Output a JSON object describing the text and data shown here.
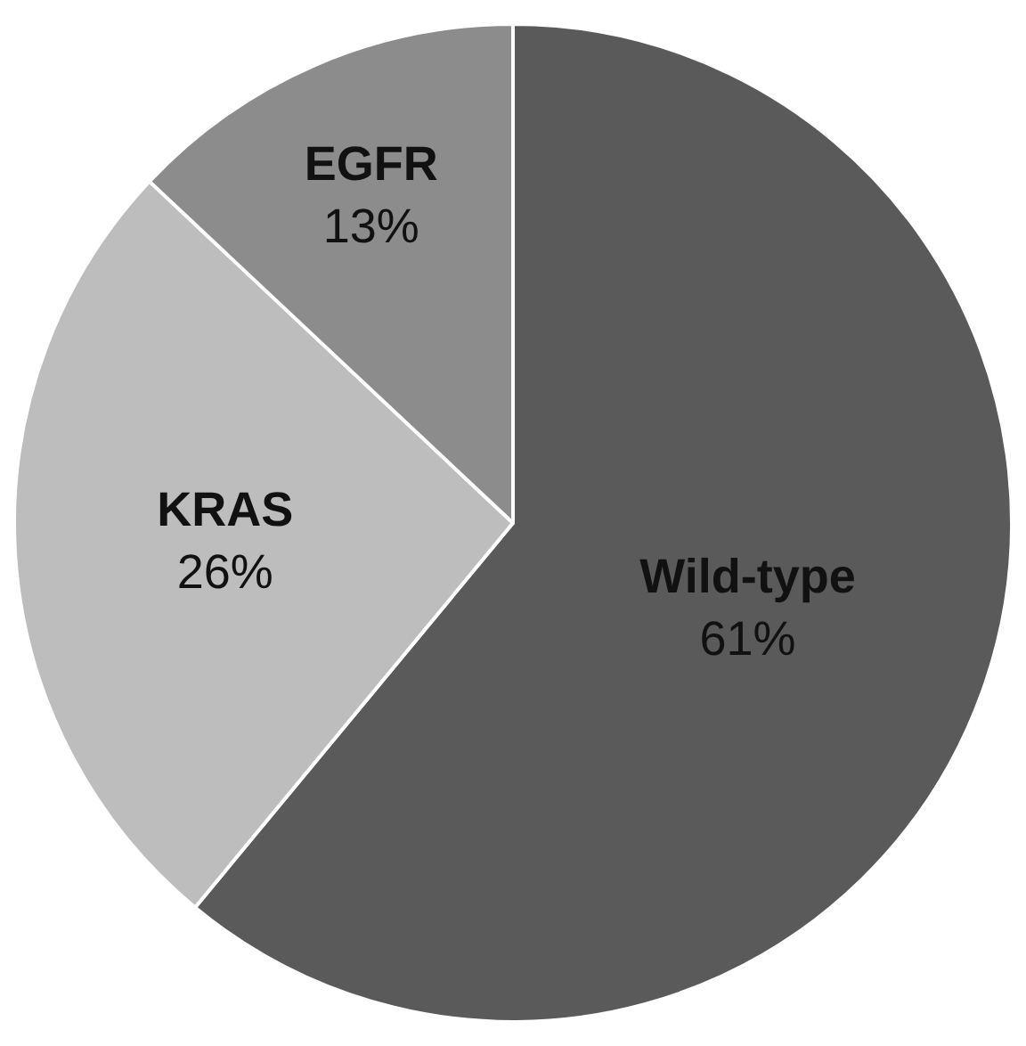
{
  "chart_data": {
    "type": "pie",
    "categories": [
      "Wild-type",
      "KRAS",
      "EGFR"
    ],
    "values": [
      61,
      26,
      13
    ],
    "value_labels": [
      "61%",
      "26%",
      "13%"
    ],
    "colors": [
      "#5a5a5a",
      "#bdbdbd",
      "#8c8c8c"
    ],
    "legend": false
  }
}
